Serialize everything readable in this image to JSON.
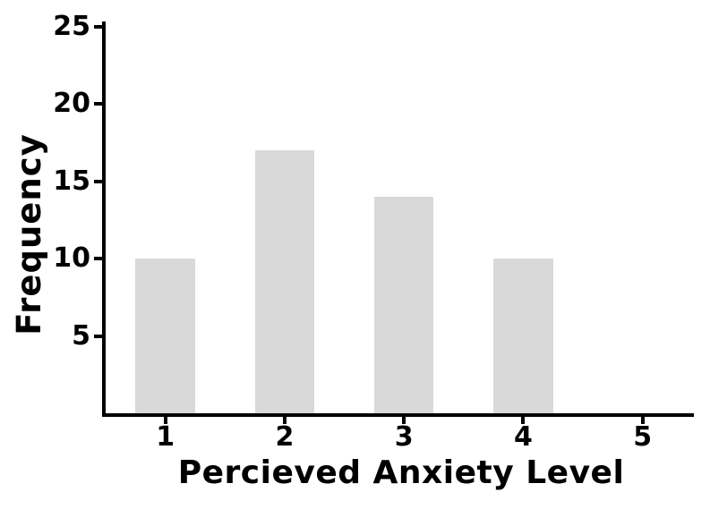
{
  "chart_data": {
    "type": "bar",
    "title": "",
    "xlabel": "Percieved Anxiety Level",
    "ylabel": "Frequency",
    "categories": [
      1,
      2,
      3,
      4,
      5
    ],
    "xtick_labels": [
      "1",
      "2",
      "3",
      "4",
      "5"
    ],
    "values": [
      10,
      17,
      14,
      10,
      0
    ],
    "yticks": [
      5,
      10,
      15,
      20,
      25
    ],
    "xlim": [
      0.5,
      5.43
    ],
    "ylim": [
      0,
      25
    ],
    "bar_width": 0.5,
    "bar_color": "#d9d9d9",
    "axis_color": "#000000",
    "background_color": "#ffffff",
    "grid": false,
    "legend": null
  }
}
